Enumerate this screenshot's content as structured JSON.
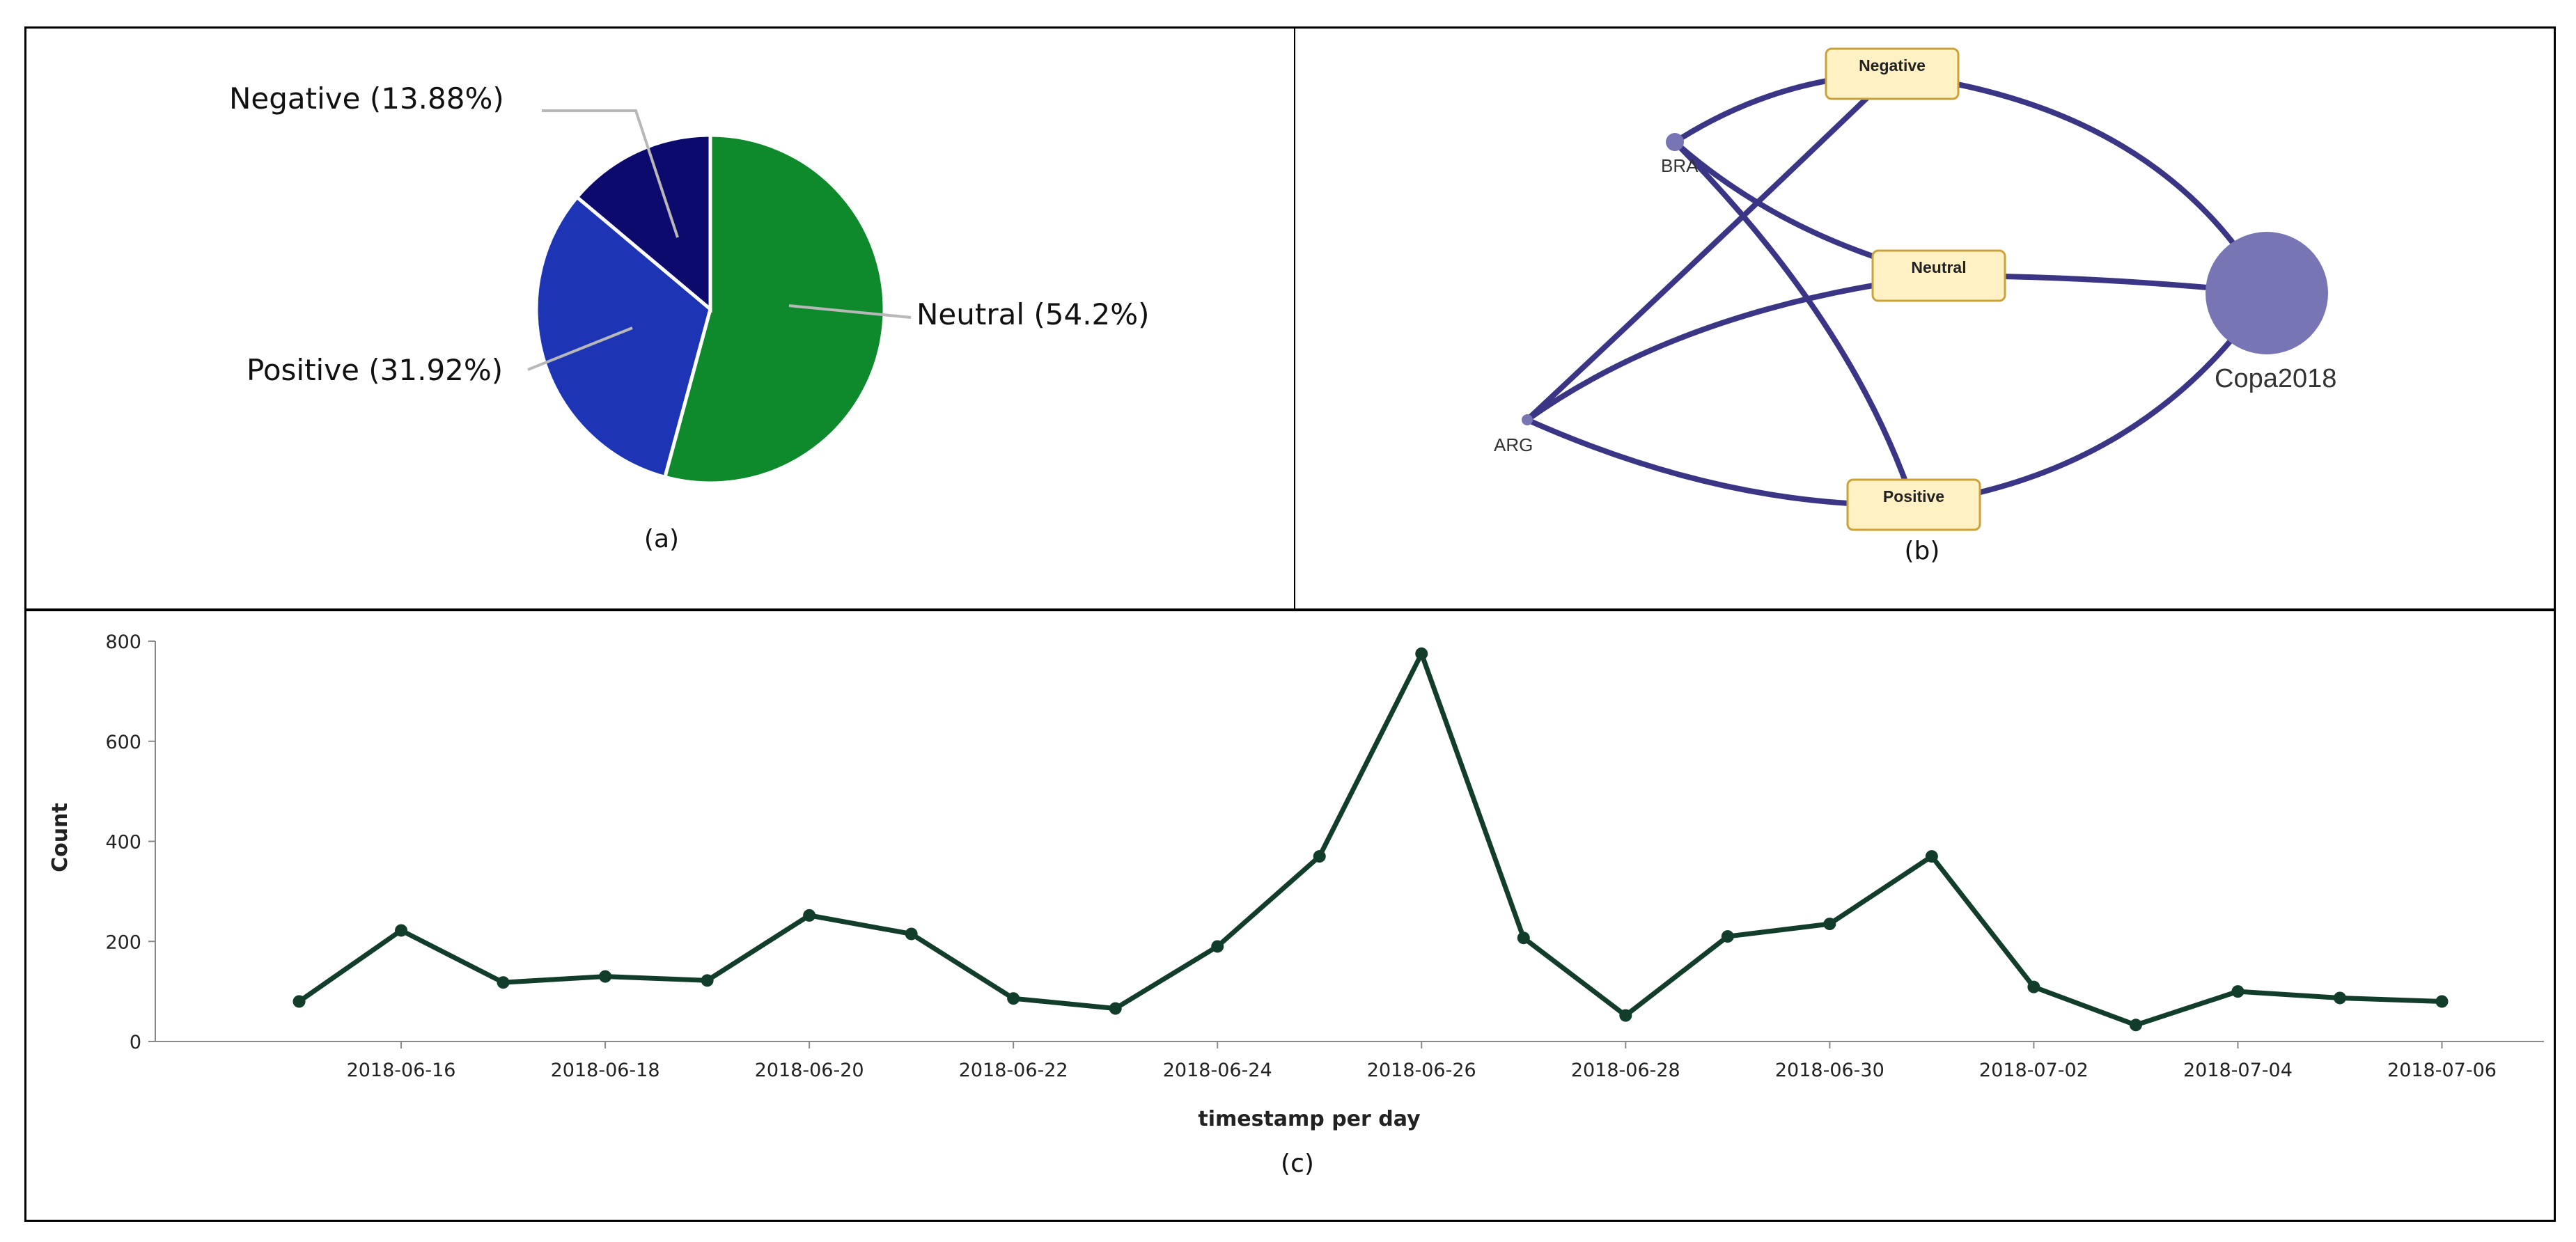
{
  "chart_data": [
    {
      "type": "pie",
      "caption": "(a)",
      "slices": [
        {
          "label": "Neutral (54.2%)",
          "value": 54.2,
          "color": "#0e8a2c"
        },
        {
          "label": "Positive (31.92%)",
          "value": 31.92,
          "color": "#1d35b5"
        },
        {
          "label": "Negative (13.88%)",
          "value": 13.88,
          "color": "#0d0a6e"
        }
      ]
    },
    {
      "type": "network",
      "caption": "(b)",
      "nodes": [
        {
          "id": "BRA",
          "label": "BRA",
          "kind": "point"
        },
        {
          "id": "ARG",
          "label": "ARG",
          "kind": "point"
        },
        {
          "id": "Copa2018",
          "label": "Copa2018",
          "kind": "hub"
        },
        {
          "id": "Negative",
          "label": "Negative",
          "kind": "box"
        },
        {
          "id": "Neutral",
          "label": "Neutral",
          "kind": "box"
        },
        {
          "id": "Positive",
          "label": "Positive",
          "kind": "box"
        }
      ],
      "edges": [
        [
          "BRA",
          "Negative"
        ],
        [
          "BRA",
          "Neutral"
        ],
        [
          "BRA",
          "Positive"
        ],
        [
          "ARG",
          "Negative"
        ],
        [
          "ARG",
          "Neutral"
        ],
        [
          "ARG",
          "Positive"
        ],
        [
          "Negative",
          "Copa2018"
        ],
        [
          "Neutral",
          "Copa2018"
        ],
        [
          "Positive",
          "Copa2018"
        ]
      ],
      "colors": {
        "edge": "#3b3585",
        "node": "#7775b4",
        "box_fill": "#fff1c4",
        "box_stroke": "#c9a23a"
      }
    },
    {
      "type": "line",
      "caption": "(c)",
      "xlabel": "timestamp per day",
      "ylabel": "Count",
      "ylim": [
        0,
        800
      ],
      "yticks": [
        0,
        200,
        400,
        600,
        800
      ],
      "xticks": [
        "2018-06-16",
        "2018-06-18",
        "2018-06-20",
        "2018-06-22",
        "2018-06-24",
        "2018-06-26",
        "2018-06-28",
        "2018-06-30",
        "2018-07-02",
        "2018-07-04",
        "2018-07-06"
      ],
      "x": [
        "2018-06-15",
        "2018-06-16",
        "2018-06-17",
        "2018-06-18",
        "2018-06-19",
        "2018-06-20",
        "2018-06-21",
        "2018-06-22",
        "2018-06-23",
        "2018-06-24",
        "2018-06-25",
        "2018-06-26",
        "2018-06-27",
        "2018-06-28",
        "2018-06-29",
        "2018-06-30",
        "2018-07-01",
        "2018-07-02",
        "2018-07-03",
        "2018-07-04",
        "2018-07-05",
        "2018-07-06"
      ],
      "values": [
        80,
        222,
        118,
        130,
        122,
        252,
        215,
        86,
        66,
        190,
        370,
        775,
        207,
        52,
        210,
        235,
        370,
        109,
        33,
        100,
        87,
        80
      ],
      "line_color": "#123d2a"
    }
  ]
}
